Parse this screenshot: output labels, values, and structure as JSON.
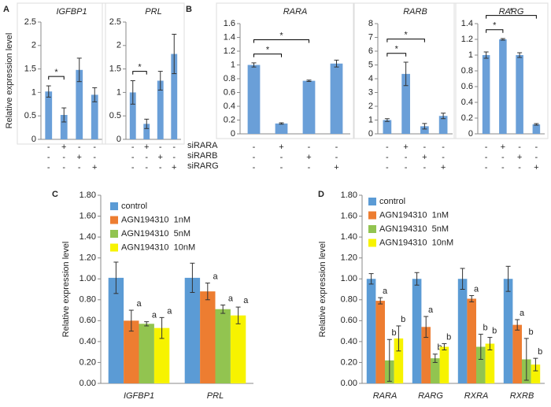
{
  "panel_labels": [
    "A",
    "B",
    "C",
    "D"
  ],
  "condition_labels": [
    "siRARA",
    "siRARB",
    "siRARG"
  ],
  "chart_data": [
    {
      "type": "bar",
      "title": "IGFBP1",
      "ylabel": "Relative expression level",
      "color": "#6a9fd8",
      "values": [
        1.02,
        0.52,
        1.48,
        0.95
      ],
      "errors": [
        0.12,
        0.15,
        0.25,
        0.15
      ],
      "ylim": [
        0,
        2.5
      ],
      "yticks": [
        0,
        0.5,
        1,
        1.5,
        2,
        2.5
      ],
      "signs": [
        [
          "-",
          "+",
          "-",
          "-"
        ],
        [
          "-",
          "-",
          "+",
          "-"
        ],
        [
          "-",
          "-",
          "-",
          "+"
        ]
      ],
      "annotations": [
        {
          "text": "*",
          "from": 0,
          "to": 1
        }
      ]
    },
    {
      "type": "bar",
      "title": "PRL",
      "color": "#6a9fd8",
      "values": [
        1.0,
        0.33,
        1.25,
        1.82
      ],
      "errors": [
        0.25,
        0.1,
        0.2,
        0.42
      ],
      "ylim": [
        0,
        2.5
      ],
      "yticks": [
        0,
        0.5,
        1,
        1.5,
        2,
        2.5
      ],
      "signs": [
        [
          "-",
          "+",
          "-",
          "-"
        ],
        [
          "-",
          "-",
          "+",
          "-"
        ],
        [
          "-",
          "-",
          "-",
          "+"
        ]
      ],
      "annotations": [
        {
          "text": "*",
          "from": 0,
          "to": 1
        }
      ]
    },
    {
      "type": "bar",
      "title": "RARA",
      "color": "#6a9fd8",
      "values": [
        1.0,
        0.15,
        0.77,
        1.02
      ],
      "errors": [
        0.03,
        0.01,
        0.01,
        0.05
      ],
      "ylim": [
        0,
        1.6
      ],
      "yticks": [
        0,
        0.2,
        0.4,
        0.6,
        0.8,
        1,
        1.2,
        1.4,
        1.6
      ],
      "signs": [
        [
          "-",
          "+",
          "-",
          "-"
        ],
        [
          "-",
          "-",
          "+",
          "-"
        ],
        [
          "-",
          "-",
          "-",
          "+"
        ]
      ],
      "annotations": [
        {
          "text": "*",
          "from": 0,
          "to": 1
        },
        {
          "text": "*",
          "from": 0,
          "to": 2
        }
      ]
    },
    {
      "type": "bar",
      "title": "RARB",
      "color": "#6a9fd8",
      "values": [
        1.0,
        4.35,
        0.55,
        1.3
      ],
      "errors": [
        0.1,
        0.85,
        0.2,
        0.2
      ],
      "ylim": [
        0,
        8
      ],
      "yticks": [
        0,
        1,
        2,
        3,
        4,
        5,
        6,
        7,
        8
      ],
      "signs": [
        [
          "-",
          "+",
          "-",
          "-"
        ],
        [
          "-",
          "-",
          "+",
          "-"
        ],
        [
          "-",
          "-",
          "-",
          "+"
        ]
      ],
      "annotations": [
        {
          "text": "*",
          "from": 0,
          "to": 1
        },
        {
          "text": "*",
          "from": 0,
          "to": 2
        }
      ]
    },
    {
      "type": "bar",
      "title": "RARG",
      "color": "#6a9fd8",
      "values": [
        1.0,
        1.2,
        1.0,
        0.12
      ],
      "errors": [
        0.04,
        0.01,
        0.03,
        0.01
      ],
      "ylim": [
        0,
        1.4
      ],
      "yticks": [
        0,
        0.2,
        0.4,
        0.6,
        0.8,
        1,
        1.2,
        1.4
      ],
      "signs": [
        [
          "-",
          "+",
          "-",
          "-"
        ],
        [
          "-",
          "-",
          "+",
          "-"
        ],
        [
          "-",
          "-",
          "-",
          "+"
        ]
      ],
      "annotations": [
        {
          "text": "*",
          "from": 0,
          "to": 1
        },
        {
          "text": "*",
          "from": 0,
          "to": 3
        }
      ]
    },
    {
      "type": "bar",
      "ylabel": "Relative expression level",
      "categories": [
        "IGFBP1",
        "PRL"
      ],
      "ylim": [
        0,
        1.8
      ],
      "yticks": [
        {
          "value": 0,
          "label": "0.00"
        },
        {
          "value": 0.2,
          "label": "0.20"
        },
        {
          "value": 0.4,
          "label": "0.40"
        },
        {
          "value": 0.6,
          "label": "0.60"
        },
        {
          "value": 0.8,
          "label": "0.80"
        },
        {
          "value": 1,
          "label": "1.00"
        },
        {
          "value": 1.2,
          "label": "1.20"
        },
        {
          "value": 1.4,
          "label": "1.40"
        },
        {
          "value": 1.6,
          "label": "1.60"
        },
        {
          "value": 1.8,
          "label": "1.80"
        }
      ],
      "series": [
        {
          "name": "control",
          "color": "#5b9bd5",
          "values": [
            1.01,
            1.01
          ],
          "errors": [
            0.15,
            0.14
          ]
        },
        {
          "name": "AGN194310  1nM",
          "color": "#ed7d31",
          "values": [
            0.6,
            0.88
          ],
          "errors": [
            0.1,
            0.08
          ],
          "letters": [
            "a",
            "a"
          ]
        },
        {
          "name": "AGN194310  5nM",
          "color": "#92c450",
          "values": [
            0.57,
            0.71
          ],
          "errors": [
            0.02,
            0.04
          ],
          "letters": [
            "a",
            "a"
          ]
        },
        {
          "name": "AGN194310  10nM",
          "color": "#f7f300",
          "values": [
            0.53,
            0.65
          ],
          "errors": [
            0.1,
            0.08
          ],
          "letters": [
            "a",
            "a"
          ]
        }
      ]
    },
    {
      "type": "bar",
      "ylabel": "Relative expression level",
      "categories": [
        "RARA",
        "RARG",
        "RXRA",
        "RXRB"
      ],
      "ylim": [
        0,
        1.8
      ],
      "yticks": [
        {
          "value": 0,
          "label": "0.00"
        },
        {
          "value": 0.2,
          "label": "0.20"
        },
        {
          "value": 0.4,
          "label": "0.40"
        },
        {
          "value": 0.6,
          "label": "0.60"
        },
        {
          "value": 0.8,
          "label": "0.80"
        },
        {
          "value": 1,
          "label": "1.00"
        },
        {
          "value": 1.2,
          "label": "1.20"
        },
        {
          "value": 1.4,
          "label": "1.40"
        },
        {
          "value": 1.6,
          "label": "1.60"
        },
        {
          "value": 1.8,
          "label": "1.80"
        }
      ],
      "series": [
        {
          "name": "control",
          "color": "#5b9bd5",
          "values": [
            1.0,
            1.0,
            1.0,
            1.0
          ],
          "errors": [
            0.05,
            0.06,
            0.1,
            0.12
          ]
        },
        {
          "name": "AGN194310  1nM",
          "color": "#ed7d31",
          "values": [
            0.79,
            0.54,
            0.81,
            0.56
          ],
          "errors": [
            0.03,
            0.1,
            0.03,
            0.05
          ],
          "letters": [
            "a",
            "a",
            "a",
            "a"
          ]
        },
        {
          "name": "AGN194310  5nM",
          "color": "#92c450",
          "values": [
            0.22,
            0.24,
            0.35,
            0.23
          ],
          "errors": [
            0.2,
            0.04,
            0.12,
            0.2
          ],
          "letters": [
            "b",
            "b",
            "b",
            "b"
          ]
        },
        {
          "name": "AGN194310  10nM",
          "color": "#f7f300",
          "values": [
            0.43,
            0.35,
            0.38,
            0.18
          ],
          "errors": [
            0.12,
            0.03,
            0.06,
            0.06
          ],
          "letters": [
            "b",
            "b",
            "b",
            "b"
          ]
        }
      ]
    }
  ]
}
